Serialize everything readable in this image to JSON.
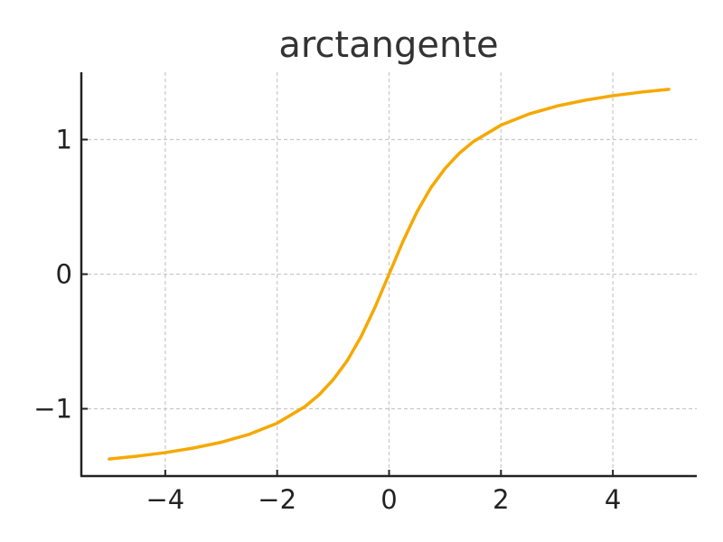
{
  "chart_data": {
    "type": "line",
    "title": "arctangente",
    "xlabel": "",
    "ylabel": "",
    "xlim": [
      -5.5,
      5.5
    ],
    "ylim": [
      -1.5,
      1.5
    ],
    "xticks": [
      -4,
      -2,
      0,
      2,
      4
    ],
    "xtick_labels": [
      "−4",
      "−2",
      "0",
      "2",
      "4"
    ],
    "yticks": [
      -1,
      0,
      1
    ],
    "ytick_labels": [
      "−1",
      "0",
      "1"
    ],
    "grid": true,
    "legend": "none",
    "series": [
      {
        "color": "#f5a800",
        "x": [
          -5,
          -4.5,
          -4,
          -3.5,
          -3,
          -2.5,
          -2,
          -1.5,
          -1.25,
          -1,
          -0.75,
          -0.5,
          -0.25,
          0,
          0.25,
          0.5,
          0.75,
          1,
          1.25,
          1.5,
          2,
          2.5,
          3,
          3.5,
          4,
          4.5,
          5
        ],
        "y": [
          -1.373,
          -1.352,
          -1.326,
          -1.292,
          -1.249,
          -1.19,
          -1.107,
          -0.983,
          -0.896,
          -0.785,
          -0.644,
          -0.464,
          -0.245,
          0,
          0.245,
          0.464,
          0.644,
          0.785,
          0.896,
          0.983,
          1.107,
          1.19,
          1.249,
          1.292,
          1.326,
          1.352,
          1.373
        ]
      }
    ]
  }
}
